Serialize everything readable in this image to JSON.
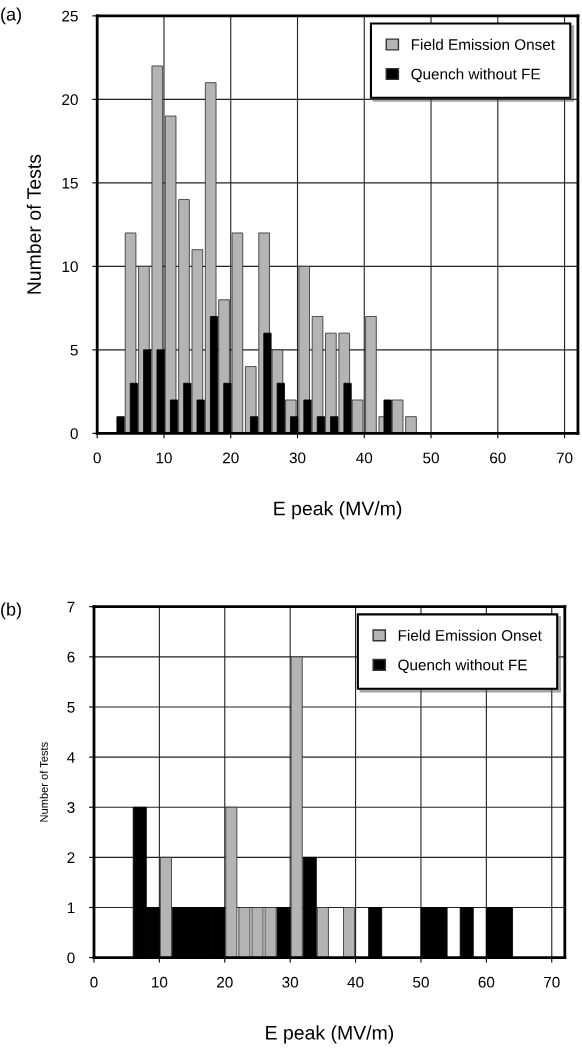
{
  "chart_data": [
    {
      "type": "bar",
      "xlabel": "E peak (MV/m)",
      "ylabel": "Number of Tests",
      "annotations": [
        "(a)"
      ],
      "xlim": [
        0,
        72
      ],
      "ylim": [
        0,
        25
      ],
      "xticks": [
        0,
        10,
        20,
        30,
        40,
        50,
        60,
        70
      ],
      "yticks": [
        0,
        5,
        10,
        15,
        20,
        25
      ],
      "grid": true,
      "legend": "top right",
      "series": [
        {
          "name": "Field Emission Onset",
          "color": "#b4b4b4",
          "x": [
            5,
            7,
            9,
            11,
            13,
            15,
            17,
            19,
            21,
            23,
            25,
            27,
            29,
            31,
            33,
            35,
            37,
            39,
            41,
            43,
            45,
            47
          ],
          "values": [
            12,
            10,
            22,
            19,
            14,
            11,
            21,
            8,
            12,
            4,
            12,
            5,
            2,
            10,
            7,
            6,
            6,
            2,
            7,
            1,
            2,
            1
          ]
        },
        {
          "name": "Quench without FE",
          "color": "#000000",
          "x": [
            3.5,
            5.5,
            7.5,
            9.5,
            11.5,
            13.5,
            15.5,
            17.5,
            19.5,
            21.5,
            23.5,
            25.5,
            27.5,
            29.5,
            31.5,
            33.5,
            35.5,
            37.5,
            39.5,
            41.5,
            43.5
          ],
          "values": [
            1,
            3,
            5,
            5,
            2,
            3,
            2,
            7,
            3,
            0,
            1,
            6,
            3,
            1,
            2,
            1,
            1,
            3,
            0,
            0,
            2
          ]
        }
      ]
    },
    {
      "type": "bar",
      "xlabel": "E peak (MV/m)",
      "ylabel": "Number of Tests",
      "annotations": [
        "(b)"
      ],
      "xlim": [
        0,
        72
      ],
      "ylim": [
        0,
        7
      ],
      "xticks": [
        0,
        10,
        20,
        30,
        40,
        50,
        60,
        70
      ],
      "yticks": [
        0,
        1,
        2,
        3,
        4,
        5,
        6,
        7
      ],
      "grid": true,
      "legend": "top right",
      "series": [
        {
          "name": "Field Emission Onset",
          "color": "#b4b4b4",
          "x": [
            11,
            21,
            23,
            25,
            27,
            31,
            35,
            39
          ],
          "values": [
            2,
            3,
            1,
            1,
            1,
            6,
            1,
            1
          ]
        },
        {
          "name": "Quench without FE",
          "color": "#000000",
          "x": [
            7,
            9,
            13,
            15,
            17,
            19,
            29,
            33,
            43,
            51,
            53,
            57,
            61,
            63
          ],
          "values": [
            3,
            1,
            1,
            1,
            1,
            1,
            1,
            2,
            1,
            1,
            1,
            1,
            1,
            1
          ]
        }
      ]
    }
  ]
}
